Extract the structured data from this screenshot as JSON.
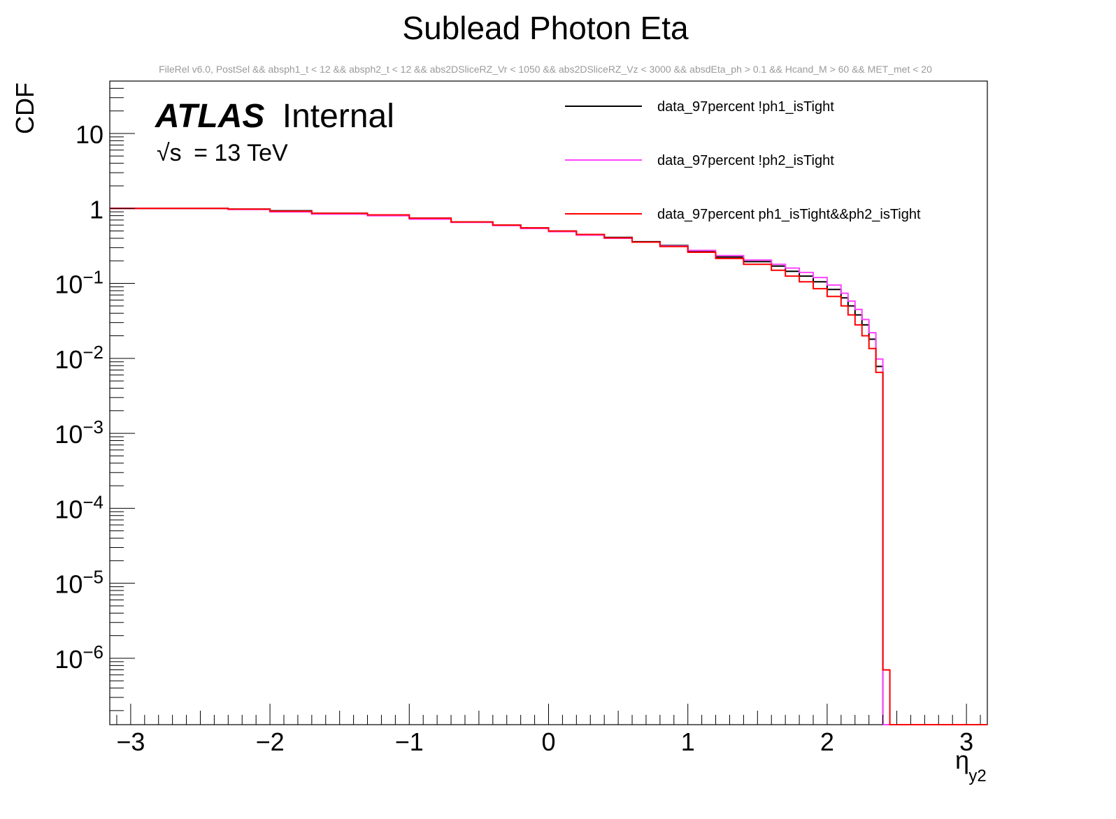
{
  "chart_data": {
    "type": "line",
    "title": "Sublead Photon Eta",
    "subtitle": "FileRel v6.0, PostSel &&  absph1_t < 12 && absph2_t < 12 && abs2DSliceRZ_Vr < 1050 && abs2DSliceRZ_Vz < 3000 && absdEta_ph > 0.1 && Hcand_M > 60 && MET_met < 20",
    "xlabel": "η",
    "xlabel_sub": "y2",
    "ylabel": "CDF",
    "xlim": [
      -3.15,
      3.15
    ],
    "ylim": [
      1.3e-07,
      50
    ],
    "yscale": "log",
    "x_ticks": [
      -3,
      -2,
      -1,
      0,
      1,
      2,
      3
    ],
    "x_tick_labels": [
      "−3",
      "−2",
      "−1",
      "0",
      "1",
      "2",
      "3"
    ],
    "y_ticks": [
      {
        "value": 10,
        "base": "10",
        "exp": ""
      },
      {
        "value": 1,
        "base": "1",
        "exp": ""
      },
      {
        "value": 0.1,
        "base": "10",
        "exp": "−1"
      },
      {
        "value": 0.01,
        "base": "10",
        "exp": "−2"
      },
      {
        "value": 0.001,
        "base": "10",
        "exp": "−3"
      },
      {
        "value": 0.0001,
        "base": "10",
        "exp": "−4"
      },
      {
        "value": 1e-05,
        "base": "10",
        "exp": "−5"
      },
      {
        "value": 1e-06,
        "base": "10",
        "exp": "−6"
      }
    ],
    "atlas_label": "ATLAS",
    "atlas_status": "Internal",
    "energy_sqrt": "√s",
    "energy_text": "= 13 TeV",
    "series": [
      {
        "name": "data_97percent !ph1_isTight",
        "color": "#000000",
        "x": [
          -3.15,
          -2.4,
          -2.3,
          -2.0,
          -1.7,
          -1.3,
          -1.0,
          -0.7,
          -0.4,
          -0.2,
          0.0,
          0.2,
          0.4,
          0.6,
          0.8,
          1.0,
          1.2,
          1.4,
          1.6,
          1.7,
          1.8,
          1.9,
          2.0,
          2.1,
          2.15,
          2.2,
          2.25,
          2.3,
          2.35,
          2.4,
          3.15
        ],
        "y": [
          1.0,
          1.0,
          0.98,
          0.93,
          0.86,
          0.82,
          0.74,
          0.66,
          0.6,
          0.55,
          0.5,
          0.45,
          0.41,
          0.36,
          0.32,
          0.27,
          0.225,
          0.195,
          0.17,
          0.145,
          0.125,
          0.105,
          0.083,
          0.064,
          0.05,
          0.038,
          0.028,
          0.018,
          0.0078,
          1e-07,
          1e-07
        ]
      },
      {
        "name": "data_97percent !ph2_isTight",
        "color": "#ff44ff",
        "x": [
          -3.15,
          -2.4,
          -2.3,
          -2.0,
          -1.7,
          -1.3,
          -1.0,
          -0.7,
          -0.4,
          -0.2,
          0.0,
          0.2,
          0.4,
          0.6,
          0.8,
          1.0,
          1.2,
          1.4,
          1.6,
          1.7,
          1.8,
          1.9,
          2.0,
          2.1,
          2.15,
          2.2,
          2.25,
          2.3,
          2.35,
          2.4,
          3.15
        ],
        "y": [
          1.0,
          1.0,
          0.97,
          0.9,
          0.84,
          0.8,
          0.72,
          0.65,
          0.59,
          0.54,
          0.49,
          0.44,
          0.4,
          0.355,
          0.315,
          0.275,
          0.235,
          0.205,
          0.18,
          0.16,
          0.14,
          0.12,
          0.095,
          0.074,
          0.058,
          0.045,
          0.033,
          0.022,
          0.0098,
          1e-07,
          1e-07
        ]
      },
      {
        "name": "data_97percent ph1_isTight&&ph2_isTight",
        "color": "#ff0000",
        "x": [
          -3.15,
          -2.4,
          -2.3,
          -2.0,
          -1.7,
          -1.3,
          -1.0,
          -0.7,
          -0.4,
          -0.2,
          0.0,
          0.2,
          0.4,
          0.6,
          0.8,
          1.0,
          1.2,
          1.4,
          1.6,
          1.7,
          1.8,
          1.9,
          2.0,
          2.1,
          2.15,
          2.2,
          2.25,
          2.3,
          2.35,
          2.4,
          2.45,
          3.15
        ],
        "y": [
          1.0,
          1.0,
          0.98,
          0.92,
          0.86,
          0.82,
          0.74,
          0.66,
          0.6,
          0.55,
          0.5,
          0.45,
          0.405,
          0.355,
          0.31,
          0.26,
          0.215,
          0.18,
          0.15,
          0.125,
          0.105,
          0.085,
          0.067,
          0.05,
          0.038,
          0.028,
          0.02,
          0.0135,
          0.0065,
          7e-07,
          1e-07,
          1e-07
        ]
      }
    ]
  }
}
